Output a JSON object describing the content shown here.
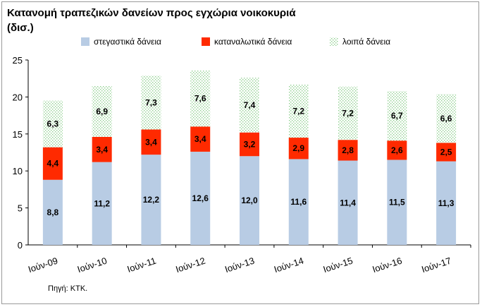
{
  "chart_data": {
    "type": "bar",
    "stacked": true,
    "title_line1": "Κατανομή τραπεζικών δανείων προς εγχώρια νοικοκυριά",
    "title_line2": "(δισ.)",
    "categories": [
      "Ιούν-09",
      "Ιούν-10",
      "Ιούν-11",
      "Ιούν-12",
      "Ιούν-13",
      "Ιούν-14",
      "Ιούν-15",
      "Ιούν-16",
      "Ιούν-17"
    ],
    "series": [
      {
        "name": "στεγαστικά δάνεια",
        "color": "#b8cce4",
        "values": [
          8.8,
          11.2,
          12.2,
          12.6,
          12.0,
          11.6,
          11.4,
          11.5,
          11.3
        ],
        "labels": [
          "8,8",
          "11,2",
          "12,2",
          "12,6",
          "12,0",
          "11,6",
          "11,4",
          "11,5",
          "11,3"
        ]
      },
      {
        "name": "καταναλωτικά δάνεια",
        "color": "#ff2a00",
        "values": [
          4.4,
          3.4,
          3.4,
          3.4,
          3.2,
          2.9,
          2.8,
          2.6,
          2.5
        ],
        "labels": [
          "4,4",
          "3,4",
          "3,4",
          "3,4",
          "3,2",
          "2,9",
          "2,8",
          "2,6",
          "2,5"
        ]
      },
      {
        "name": "λοιπά δάνεια",
        "color": "#d9f0d9",
        "pattern": "dotted-green",
        "values": [
          6.3,
          6.9,
          7.3,
          7.6,
          7.4,
          7.2,
          7.2,
          6.7,
          6.6
        ],
        "labels": [
          "6,3",
          "6,9",
          "7,3",
          "7,6",
          "7,4",
          "7,2",
          "7,2",
          "6,7",
          "6,6"
        ]
      }
    ],
    "ylim": [
      0,
      25
    ],
    "yticks": [
      "0",
      "5",
      "10",
      "15",
      "20",
      "25"
    ],
    "grid": false,
    "legend_position": "top",
    "source": "Πηγή: ΚΤΚ."
  }
}
